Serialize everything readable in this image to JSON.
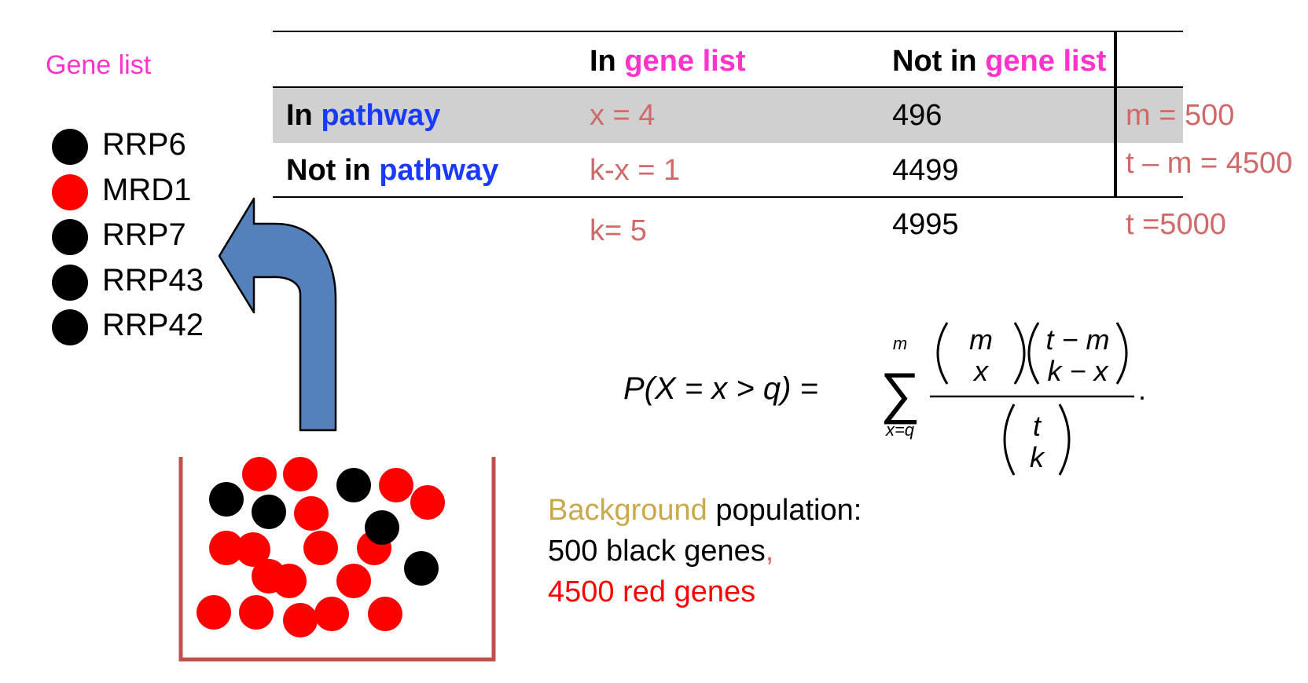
{
  "gene_list": {
    "title": "Gene list",
    "items": [
      {
        "name": "RRP6",
        "color": "#000000"
      },
      {
        "name": "MRD1",
        "color": "#ff0000"
      },
      {
        "name": "RRP7",
        "color": "#000000"
      },
      {
        "name": "RRP43",
        "color": "#000000"
      },
      {
        "name": "RRP42",
        "color": "#000000"
      }
    ]
  },
  "table": {
    "header": {
      "col1_prefix": "In",
      "col1_term": "gene list",
      "col2_prefix": "Not in",
      "col2_term": "gene list"
    },
    "rows": [
      {
        "label_prefix": "In",
        "label_term": "pathway",
        "in_list": "x = 4",
        "not_in_list": "496",
        "total": "m = 500"
      },
      {
        "label_prefix": "Not in",
        "label_term": "pathway",
        "in_list": "k-x = 1",
        "not_in_list": "4499",
        "total": "t – m = 4500"
      }
    ],
    "totals": {
      "in_list": "k= 5",
      "not_in_list": "4995",
      "grand": "t =5000"
    }
  },
  "formula": {
    "lhs": "P(X = x > q) =",
    "sum_upper": "m",
    "sum_lower": "x=q",
    "num1_top": "m",
    "num1_bottom": "x",
    "num2_top": "t − m",
    "num2_bottom": "k − x",
    "den_top": "t",
    "den_bottom": "k",
    "trail": "."
  },
  "background": {
    "word": "Background",
    "rest": " population:",
    "line2": "500 black genes",
    "line2_comma": ",",
    "line3": "4500 red genes"
  },
  "balls": [
    {
      "color": "#ff0000"
    },
    {
      "color": "#ff0000"
    },
    {
      "color": "#000000"
    },
    {
      "color": "#ff0000"
    },
    {
      "color": "#000000"
    },
    {
      "color": "#ff0000"
    },
    {
      "color": "#000000"
    },
    {
      "color": "#ff0000"
    },
    {
      "color": "#000000"
    },
    {
      "color": "#ff0000"
    },
    {
      "color": "#ff0000"
    },
    {
      "color": "#ff0000"
    },
    {
      "color": "#ff0000"
    },
    {
      "color": "#000000"
    },
    {
      "color": "#ff0000"
    },
    {
      "color": "#ff0000"
    },
    {
      "color": "#ff0000"
    },
    {
      "color": "#ff0000"
    },
    {
      "color": "#ff0000"
    },
    {
      "color": "#ff0000"
    },
    {
      "color": "#ff0000"
    },
    {
      "color": "#ff0000"
    }
  ],
  "colors": {
    "gene_list_title": "#ff33cc",
    "pathway": "#1a3bff",
    "counts": "#d06a6a",
    "arrow_fill": "#5480bb",
    "bucket": "#c0504d",
    "background_word": "#c9a94b",
    "red_genes": "#ff0000"
  }
}
